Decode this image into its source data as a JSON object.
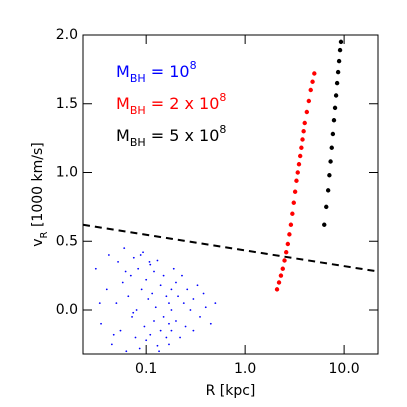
{
  "chart_data": {
    "type": "scatter",
    "x_label": {
      "parts": [
        "R [kpc]"
      ]
    },
    "y_label": {
      "parts": [
        "v",
        "R",
        " [1000 km/s]"
      ]
    },
    "xscale": "log",
    "xlim": [
      0.023,
      22
    ],
    "ylim": [
      -0.32,
      2.0
    ],
    "xticks": [
      0.1,
      {
        "value": 1,
        "label": "1.0"
      },
      {
        "value": 10,
        "label": "10.0"
      }
    ],
    "yticks": [
      {
        "value": 0,
        "label": "0.0"
      },
      0.5,
      {
        "value": 1,
        "label": "1.0"
      },
      1.5,
      {
        "value": 2,
        "label": "2.0"
      }
    ],
    "legend": "upper left",
    "series": [
      {
        "name": {
          "base": "M",
          "sub": "BH",
          "rest": " = 10",
          "sup": "8"
        },
        "color": "#0000ff",
        "x": [
          0.031,
          0.035,
          0.04,
          0.042,
          0.045,
          0.05,
          0.052,
          0.055,
          0.058,
          0.06,
          0.063,
          0.066,
          0.07,
          0.072,
          0.075,
          0.078,
          0.08,
          0.083,
          0.086,
          0.09,
          0.093,
          0.096,
          0.1,
          0.1,
          0.105,
          0.11,
          0.11,
          0.115,
          0.12,
          0.12,
          0.125,
          0.13,
          0.13,
          0.14,
          0.14,
          0.15,
          0.15,
          0.16,
          0.16,
          0.17,
          0.17,
          0.17,
          0.18,
          0.18,
          0.18,
          0.19,
          0.2,
          0.2,
          0.21,
          0.22,
          0.23,
          0.24,
          0.25,
          0.26,
          0.28,
          0.3,
          0.3,
          0.33,
          0.35,
          0.38,
          0.4,
          0.45,
          0.5,
          0.034,
          0.047,
          0.062,
          0.074,
          0.088,
          0.108,
          0.135
        ],
        "values": [
          0.3,
          -0.1,
          0.15,
          0.4,
          -0.25,
          0.05,
          0.35,
          -0.15,
          0.2,
          0.45,
          -0.3,
          0.1,
          0.25,
          -0.05,
          0.38,
          -0.2,
          0.0,
          0.3,
          -0.28,
          0.15,
          0.42,
          -0.12,
          0.22,
          -0.22,
          0.08,
          0.33,
          -0.18,
          0.12,
          0.28,
          -0.08,
          0.02,
          0.36,
          -0.26,
          0.18,
          -0.15,
          0.25,
          -0.05,
          0.1,
          -0.2,
          0.05,
          -0.1,
          -0.25,
          0.15,
          0.0,
          -0.15,
          0.3,
          -0.08,
          0.2,
          0.1,
          -0.2,
          0.25,
          0.05,
          -0.12,
          0.15,
          0.0,
          0.08,
          -0.15,
          0.18,
          -0.05,
          0.12,
          0.02,
          -0.1,
          0.05,
          0.05,
          -0.18,
          0.28,
          -0.02,
          0.4,
          0.35,
          -0.3
        ]
      },
      {
        "name": {
          "base": "M",
          "sub": "BH",
          "rest": " = 2 x 10",
          "sup": "8"
        },
        "color": "#ff0000",
        "x": [
          2.1,
          2.2,
          2.3,
          2.4,
          2.5,
          2.6,
          2.7,
          2.8,
          2.9,
          3.0,
          3.1,
          3.2,
          3.3,
          3.4,
          3.5,
          3.6,
          3.7,
          3.8,
          3.9,
          4.0,
          4.2,
          4.4,
          4.6,
          4.8,
          5.0
        ],
        "values": [
          0.15,
          0.2,
          0.25,
          0.3,
          0.36,
          0.42,
          0.48,
          0.55,
          0.62,
          0.7,
          0.78,
          0.86,
          0.94,
          1.0,
          1.06,
          1.12,
          1.18,
          1.24,
          1.3,
          1.36,
          1.44,
          1.52,
          1.6,
          1.66,
          1.72
        ]
      },
      {
        "name": {
          "base": "M",
          "sub": "BH",
          "rest": " = 5 x 10",
          "sup": "8"
        },
        "color": "#000000",
        "x": [
          6.3,
          6.6,
          6.9,
          7.1,
          7.3,
          7.5,
          7.7,
          7.9,
          8.1,
          8.3,
          8.5,
          8.7,
          8.9,
          9.1,
          9.3
        ],
        "values": [
          0.62,
          0.75,
          0.87,
          0.98,
          1.08,
          1.18,
          1.28,
          1.38,
          1.47,
          1.56,
          1.65,
          1.73,
          1.81,
          1.89,
          1.95
        ]
      }
    ],
    "reference_line": {
      "x": [
        0.023,
        22
      ],
      "values": [
        0.62,
        0.28
      ],
      "color": "#000000",
      "dash": true
    }
  }
}
